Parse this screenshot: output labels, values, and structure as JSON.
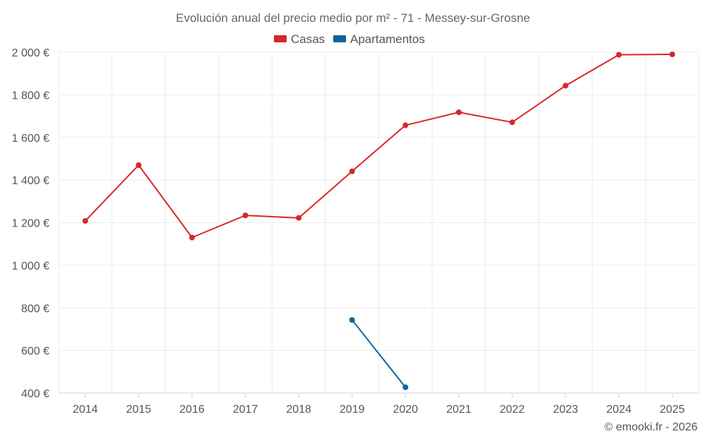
{
  "chart_data": {
    "type": "line",
    "title": "Evolución anual del precio medio por m² - 71 - Messey-sur-Grosne",
    "xlabel": "",
    "ylabel": "",
    "categories": [
      "2014",
      "2015",
      "2016",
      "2017",
      "2018",
      "2019",
      "2020",
      "2021",
      "2022",
      "2023",
      "2024",
      "2025"
    ],
    "ylim": [
      400,
      2000
    ],
    "yticks": [
      400,
      600,
      800,
      1000,
      1200,
      1400,
      1600,
      1800,
      2000
    ],
    "ytick_labels": [
      "400 €",
      "600 €",
      "800 €",
      "1 000 €",
      "1 200 €",
      "1 400 €",
      "1 600 €",
      "1 800 €",
      "2 000 €"
    ],
    "grid": true,
    "legend_position": "top-center",
    "series": [
      {
        "name": "Casas",
        "color": "#d62728",
        "values": [
          1208,
          1470,
          1130,
          1234,
          1222,
          1441,
          1657,
          1718,
          1671,
          1843,
          1988,
          1990
        ]
      },
      {
        "name": "Apartamentos",
        "color": "#0c6598",
        "values": [
          null,
          null,
          null,
          null,
          null,
          743,
          427,
          null,
          null,
          null,
          null,
          null
        ]
      }
    ]
  },
  "watermark": "© emooki.fr - 2026"
}
